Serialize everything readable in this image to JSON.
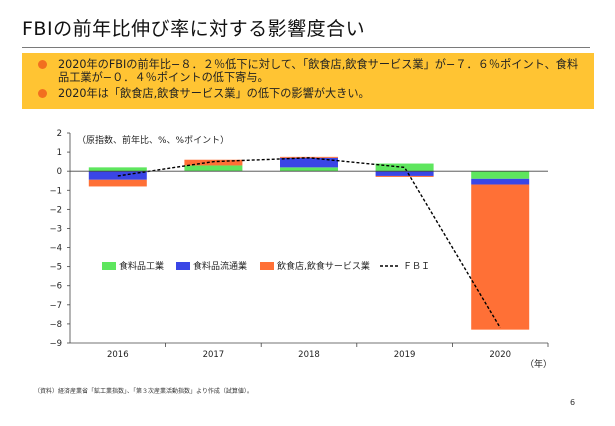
{
  "slide": {
    "title": "FBIの前年比伸び率に対する影響度合い",
    "page_number": "6",
    "source": "（資料）経済産業省「鉱工業指数」、「第３次産業活動指数」より作成（試算値）。"
  },
  "bullets": [
    "2020年のFBIの前年比−８．２％低下に対して、「飲食店,飲食サービス業」が−７．６％ポイント、食料品工業が−０．４％ポイントの低下寄与。",
    "2020年は「飲食店,飲食サービス業」の低下の影響が大きい。"
  ],
  "colors": {
    "bullet_box": "#ffc433",
    "bullet_dot": "#f26f1f",
    "food_industry": "#5ee65e",
    "distribution": "#3a46e6",
    "restaurants": "#ff7036",
    "fbi_line": "#000000"
  },
  "chart_data": {
    "type": "bar",
    "stacked": true,
    "unit_label": "（原指数、前年比、%、%ポイント）",
    "xlabel": "（年）",
    "categories": [
      "2016",
      "2017",
      "2018",
      "2019",
      "2020"
    ],
    "ylim": [
      -9,
      2
    ],
    "yticks": [
      "2",
      "1",
      "0",
      "−1",
      "−2",
      "−3",
      "−4",
      "−5",
      "−6",
      "−7",
      "−8",
      "−9"
    ],
    "series": [
      {
        "name": "食料品工業",
        "kind": "bar",
        "color": "#5ee65e",
        "values": [
          0.2,
          0.3,
          0.2,
          0.4,
          -0.4
        ]
      },
      {
        "name": "食料品流通業",
        "kind": "bar",
        "color": "#3a46e6",
        "values": [
          -0.45,
          0.0,
          0.5,
          -0.25,
          -0.3
        ]
      },
      {
        "name": "飲食店,飲食サービス業",
        "kind": "bar",
        "color": "#ff7036",
        "values": [
          -0.35,
          0.3,
          0.05,
          -0.05,
          -7.6
        ]
      },
      {
        "name": "ＦＢＩ",
        "kind": "line",
        "color": "#000000",
        "values": [
          -0.25,
          0.5,
          0.7,
          0.2,
          -8.2
        ]
      }
    ],
    "legend_position": "middle-left"
  }
}
